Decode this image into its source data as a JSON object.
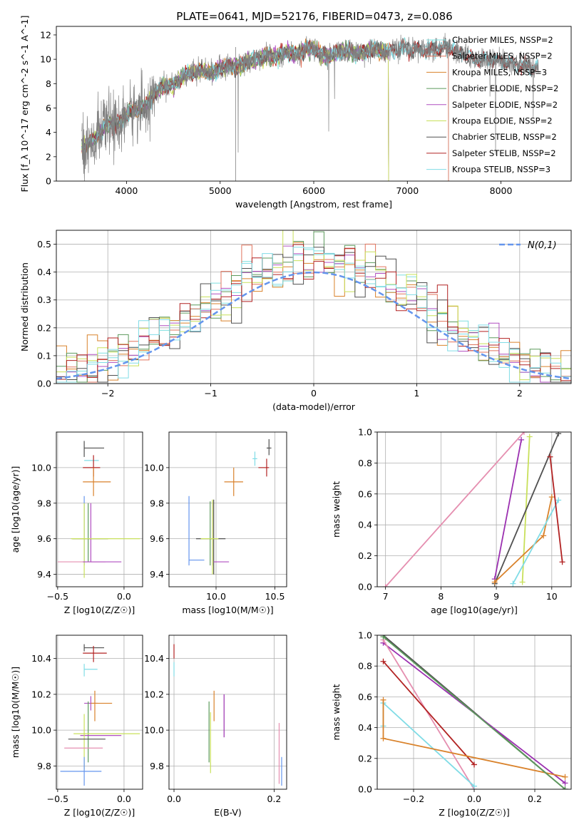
{
  "chart_data": [
    {
      "id": "spectrum",
      "type": "line",
      "title": "PLATE=0641, MJD=52176, FIBERID=0473, z=0.086",
      "xlabel": "wavelength [Angstrom, rest frame]",
      "ylabel": "Flux [f_λ 10^-17 erg cm^-2 s^-1 A^-1]",
      "xlim": [
        3250,
        8750
      ],
      "ylim": [
        0,
        12.7
      ],
      "xticks": [
        4000,
        5000,
        6000,
        7000,
        8000
      ],
      "yticks": [
        0,
        2,
        4,
        6,
        8,
        10,
        12
      ],
      "grid": false,
      "legend_position": "right",
      "data_series": {
        "name": "data",
        "x": [
          3520,
          3600,
          3700,
          3800,
          3900,
          4000,
          4100,
          4200,
          4300,
          4400,
          4500,
          4600,
          4700,
          4800,
          4900,
          5000,
          5100,
          5200,
          5300,
          5400,
          5500,
          5600,
          5700,
          5800,
          5900,
          6000,
          6100,
          6200,
          6300,
          6400,
          6500,
          6600,
          6700,
          6800,
          6900,
          7000,
          7100,
          7200,
          7300,
          7400,
          7500,
          7600,
          7700,
          7800,
          7900,
          8000,
          8100,
          8200,
          8300,
          8400
        ],
        "y": [
          2.8,
          3.2,
          3.8,
          4.8,
          4.6,
          5.5,
          5.9,
          6.1,
          7.2,
          7.8,
          7.8,
          8.6,
          9.0,
          9.0,
          8.9,
          9.2,
          9.5,
          9.4,
          9.8,
          10.0,
          10.3,
          10.2,
          10.6,
          10.4,
          10.8,
          10.9,
          10.3,
          10.4,
          10.7,
          10.6,
          10.5,
          10.8,
          10.7,
          10.6,
          10.9,
          10.9,
          10.8,
          10.7,
          10.8,
          10.9,
          10.8,
          10.4,
          10.0,
          10.0,
          9.9,
          9.9,
          9.8,
          9.5,
          9.3,
          9.2
        ]
      },
      "series": [
        {
          "name": "Chabrier MILES, N_SSP=2",
          "color": "#7fdfdf",
          "x_end": 7440
        },
        {
          "name": "Salpeter MILES, N_SSP=2",
          "color": "#e0735c",
          "x_end": 7440
        },
        {
          "name": "Kroupa MILES, N_SSP=3",
          "color": "#d9822b",
          "x_end": 6800
        },
        {
          "name": "Chabrier ELODIE, N_SSP=2",
          "color": "#5c9a5c",
          "x_end": 6800
        },
        {
          "name": "Salpeter ELODIE, N_SSP=2",
          "color": "#b04fc0",
          "x_end": 6800
        },
        {
          "name": "Kroupa ELODIE, N_SSP=2",
          "color": "#c8e05a",
          "x_end": 6800
        },
        {
          "name": "Chabrier STELIB, N_SSP=2",
          "color": "#505050",
          "x_end": 8400
        },
        {
          "name": "Salpeter STELIB, N_SSP=2",
          "color": "#b22222",
          "x_end": 8400
        },
        {
          "name": "Kroupa STELIB, N_SSP=3",
          "color": "#80dce6",
          "x_end": 8400
        }
      ]
    },
    {
      "id": "residual-hist",
      "type": "line",
      "xlabel": "(data-model)/error",
      "ylabel": "Normed distribution",
      "xlim": [
        -2.5,
        2.5
      ],
      "ylim": [
        0,
        0.55
      ],
      "xticks": [
        -2,
        -1,
        0,
        1,
        2
      ],
      "yticks": [
        0.0,
        0.1,
        0.2,
        0.3,
        0.4,
        0.5
      ],
      "grid": true,
      "legend_position": "top-right",
      "reference_curve": {
        "name": "N(0,1)",
        "color": "#6495ed",
        "mu": 0,
        "sigma": 1
      },
      "bin_width": 0.1,
      "series": [
        {
          "color": "#7fdfdf"
        },
        {
          "color": "#e0735c"
        },
        {
          "color": "#d9822b"
        },
        {
          "color": "#5c9a5c"
        },
        {
          "color": "#b04fc0"
        },
        {
          "color": "#c8e05a"
        },
        {
          "color": "#505050"
        },
        {
          "color": "#b22222"
        },
        {
          "color": "#80dce6"
        }
      ]
    },
    {
      "id": "age-vs-z",
      "type": "scatter",
      "xlabel": "Z [log10(Z/Z☉)]",
      "ylabel": "age [log10(age/yr)]",
      "xlim": [
        -0.51,
        0.14
      ],
      "ylim": [
        9.33,
        10.2
      ],
      "xticks": [
        -0.5,
        0.0
      ],
      "yticks": [
        9.4,
        9.6,
        9.8,
        10.0
      ],
      "grid": true,
      "points": [
        {
          "x": -0.3,
          "y": 10.11,
          "xerr": [
            0.0,
            0.15
          ],
          "yerr": [
            0.05,
            0.04
          ],
          "color": "#505050"
        },
        {
          "x": -0.3,
          "y": 10.04,
          "xerr": [
            0.0,
            0.11
          ],
          "yerr": [
            0.0,
            0.0
          ],
          "color": "#80dce6"
        },
        {
          "x": -0.23,
          "y": 10.0,
          "xerr": [
            0.08,
            0.05
          ],
          "yerr": [
            0.05,
            0.07
          ],
          "color": "#b22222"
        },
        {
          "x": -0.23,
          "y": 9.92,
          "xerr": [
            0.08,
            0.13
          ],
          "yerr": [
            0.08,
            0.08
          ],
          "color": "#d9822b"
        },
        {
          "x": -0.3,
          "y": 9.72,
          "xerr": [
            0.0,
            0.0
          ],
          "yerr": [
            0.27,
            0.12
          ],
          "color": "#6495ed"
        },
        {
          "x": -0.27,
          "y": 9.72,
          "xerr": [
            0.0,
            0.0
          ],
          "yerr": [
            0.25,
            0.08
          ],
          "color": "#5c9a5c"
        },
        {
          "x": -0.25,
          "y": 9.72,
          "xerr": [
            0.0,
            0.0
          ],
          "yerr": [
            0.25,
            0.08
          ],
          "color": "#b04fc0"
        },
        {
          "x": -0.27,
          "y": 9.6,
          "xerr": [
            0.12,
            0.15
          ],
          "yerr": [
            0.0,
            0.0
          ],
          "color": "#505050"
        },
        {
          "x": -0.3,
          "y": 9.6,
          "xerr": [
            0.1,
            0.42
          ],
          "yerr": [
            0.22,
            0.2
          ],
          "color": "#c8e05a"
        },
        {
          "x": -0.38,
          "y": 9.47,
          "xerr": [
            0.12,
            0.24
          ],
          "yerr": [
            0.0,
            0.0
          ],
          "color": "#e58fb0"
        },
        {
          "x": -0.26,
          "y": 9.47,
          "xerr": [
            0.05,
            0.24
          ],
          "yerr": [
            0.0,
            0.0
          ],
          "color": "#b04fc0"
        }
      ]
    },
    {
      "id": "age-vs-mass",
      "type": "scatter",
      "xlabel": "mass [log10(M/M☉)]",
      "ylabel": "",
      "xlim": [
        9.6,
        10.6
      ],
      "ylim": [
        9.33,
        10.2
      ],
      "xticks": [
        10.0,
        10.5
      ],
      "yticks": [
        9.4,
        9.6,
        9.8,
        10.0
      ],
      "grid": true,
      "points": [
        {
          "x": 10.45,
          "y": 10.11,
          "xerr": [
            0.02,
            0.02
          ],
          "yerr": [
            0.04,
            0.05
          ],
          "color": "#505050"
        },
        {
          "x": 10.33,
          "y": 10.05,
          "xerr": [
            0.02,
            0.02
          ],
          "yerr": [
            0.04,
            0.04
          ],
          "color": "#80dce6"
        },
        {
          "x": 10.43,
          "y": 10.0,
          "xerr": [
            0.07,
            0.02
          ],
          "yerr": [
            0.05,
            0.05
          ],
          "color": "#b22222"
        },
        {
          "x": 10.15,
          "y": 9.92,
          "xerr": [
            0.08,
            0.08
          ],
          "yerr": [
            0.08,
            0.08
          ],
          "color": "#d9822b"
        },
        {
          "x": 9.77,
          "y": 9.7,
          "xerr": [
            0.0,
            0.0
          ],
          "yerr": [
            0.25,
            0.14
          ],
          "color": "#6495ed"
        },
        {
          "x": 9.95,
          "y": 9.7,
          "xerr": [
            0.0,
            0.0
          ],
          "yerr": [
            0.25,
            0.11
          ],
          "color": "#5c9a5c"
        },
        {
          "x": 9.97,
          "y": 9.7,
          "xerr": [
            0.0,
            0.0
          ],
          "yerr": [
            0.25,
            0.11
          ],
          "color": "#b04fc0"
        },
        {
          "x": 9.98,
          "y": 9.6,
          "xerr": [
            0.15,
            0.1
          ],
          "yerr": [
            0.2,
            0.22
          ],
          "color": "#505050"
        },
        {
          "x": 9.97,
          "y": 9.6,
          "xerr": [
            0.1,
            0.05
          ],
          "yerr": [
            0.2,
            0.22
          ],
          "color": "#c8e05a"
        },
        {
          "x": 9.77,
          "y": 9.48,
          "xerr": [
            0.0,
            0.13
          ],
          "yerr": [
            0.0,
            0.0
          ],
          "color": "#6495ed"
        },
        {
          "x": 9.98,
          "y": 9.47,
          "xerr": [
            0.0,
            0.13
          ],
          "yerr": [
            0.0,
            0.0
          ],
          "color": "#b04fc0"
        }
      ]
    },
    {
      "id": "weight-vs-age",
      "type": "line",
      "xlabel": "age [log10(age/yr)]",
      "ylabel": "mass weight",
      "xlim": [
        6.85,
        10.35
      ],
      "ylim": [
        0,
        1.0
      ],
      "xticks": [
        7,
        8,
        9,
        10
      ],
      "yticks": [
        0.0,
        0.2,
        0.4,
        0.6,
        0.8,
        1.0
      ],
      "grid": true,
      "series": [
        {
          "color": "#e58fb0",
          "x": [
            7.0,
            9.5
          ],
          "y": [
            0.0,
            1.0
          ]
        },
        {
          "color": "#9b30b0",
          "x": [
            8.97,
            9.45
          ],
          "y": [
            0.05,
            0.95
          ]
        },
        {
          "color": "#c8e05a",
          "x": [
            9.47,
            9.6
          ],
          "y": [
            0.03,
            0.97
          ]
        },
        {
          "color": "#505050",
          "x": [
            8.97,
            10.12
          ],
          "y": [
            0.02,
            0.99
          ]
        },
        {
          "color": "#d9822b",
          "x": [
            8.97,
            9.85,
            10.0
          ],
          "y": [
            0.03,
            0.33,
            0.58
          ]
        },
        {
          "color": "#80dce6",
          "x": [
            9.3,
            10.12
          ],
          "y": [
            0.02,
            0.56
          ]
        },
        {
          "color": "#b22222",
          "x": [
            9.97,
            10.19
          ],
          "y": [
            0.84,
            0.16
          ]
        }
      ]
    },
    {
      "id": "mass-vs-z",
      "type": "scatter",
      "xlabel": "Z [log10(Z/Z☉)]",
      "ylabel": "mass [log10(M/M☉)]",
      "xlim": [
        -0.51,
        0.14
      ],
      "ylim": [
        9.67,
        10.53
      ],
      "xticks": [
        -0.5,
        0.0
      ],
      "yticks": [
        9.8,
        10.0,
        10.2,
        10.4
      ],
      "grid": true,
      "points": [
        {
          "x": -0.3,
          "y": 10.46,
          "xerr": [
            0.0,
            0.15
          ],
          "yerr": [
            0.02,
            0.02
          ],
          "color": "#505050"
        },
        {
          "x": -0.23,
          "y": 10.43,
          "xerr": [
            0.08,
            0.1
          ],
          "yerr": [
            0.05,
            0.04
          ],
          "color": "#b22222"
        },
        {
          "x": -0.3,
          "y": 10.34,
          "xerr": [
            0.0,
            0.1
          ],
          "yerr": [
            0.04,
            0.03
          ],
          "color": "#80dce6"
        },
        {
          "x": -0.25,
          "y": 10.15,
          "xerr": [
            0.05,
            0.05
          ],
          "yerr": [
            0.04,
            0.04
          ],
          "color": "#b04fc0"
        },
        {
          "x": -0.22,
          "y": 10.15,
          "xerr": [
            0.03,
            0.13
          ],
          "yerr": [
            0.1,
            0.07
          ],
          "color": "#d9822b"
        },
        {
          "x": -0.27,
          "y": 9.96,
          "xerr": [
            0.0,
            0.0
          ],
          "yerr": [
            0.14,
            0.2
          ],
          "color": "#5c9a5c"
        },
        {
          "x": -0.25,
          "y": 9.97,
          "xerr": [
            0.08,
            0.23
          ],
          "yerr": [
            0.0,
            0.0
          ],
          "color": "#b04fc0"
        },
        {
          "x": -0.3,
          "y": 9.98,
          "xerr": [
            0.08,
            0.42
          ],
          "yerr": [
            0.2,
            0.11
          ],
          "color": "#c8e05a"
        },
        {
          "x": -0.27,
          "y": 9.95,
          "xerr": [
            0.15,
            0.13
          ],
          "yerr": [
            0.0,
            0.0
          ],
          "color": "#505050"
        },
        {
          "x": -0.3,
          "y": 9.9,
          "xerr": [
            0.15,
            0.14
          ],
          "yerr": [
            0.0,
            0.0
          ],
          "color": "#e58fb0"
        },
        {
          "x": -0.3,
          "y": 9.77,
          "xerr": [
            0.18,
            0.13
          ],
          "yerr": [
            0.08,
            0.08
          ],
          "color": "#6495ed"
        }
      ]
    },
    {
      "id": "mass-vs-ebv",
      "type": "scatter",
      "xlabel": "E(B-V)",
      "ylabel": "",
      "xlim": [
        -0.01,
        0.225
      ],
      "ylim": [
        9.67,
        10.53
      ],
      "xticks": [
        0.0,
        0.2
      ],
      "yticks": [
        9.8,
        10.0,
        10.2,
        10.4
      ],
      "grid": true,
      "points": [
        {
          "x": 0.0,
          "y": 10.44,
          "xerr": [
            0.0,
            0.0
          ],
          "yerr": [
            0.04,
            0.04
          ],
          "color": "#b22222"
        },
        {
          "x": 0.0,
          "y": 10.34,
          "xerr": [
            0.0,
            0.0
          ],
          "yerr": [
            0.04,
            0.04
          ],
          "color": "#80dce6"
        },
        {
          "x": 0.08,
          "y": 10.15,
          "xerr": [
            0.0,
            0.0
          ],
          "yerr": [
            0.1,
            0.07
          ],
          "color": "#d9822b"
        },
        {
          "x": 0.1,
          "y": 10.12,
          "xerr": [
            0.0,
            0.0
          ],
          "yerr": [
            0.16,
            0.08
          ],
          "color": "#9b30b0"
        },
        {
          "x": 0.07,
          "y": 9.99,
          "xerr": [
            0.0,
            0.0
          ],
          "yerr": [
            0.17,
            0.17
          ],
          "color": "#5c9a5c"
        },
        {
          "x": 0.073,
          "y": 9.98,
          "xerr": [
            0.0,
            0.0
          ],
          "yerr": [
            0.22,
            0.12
          ],
          "color": "#c8e05a"
        },
        {
          "x": 0.21,
          "y": 9.88,
          "xerr": [
            0.0,
            0.0
          ],
          "yerr": [
            0.18,
            0.16
          ],
          "color": "#e58fb0"
        },
        {
          "x": 0.215,
          "y": 9.77,
          "xerr": [
            0.0,
            0.0
          ],
          "yerr": [
            0.08,
            0.08
          ],
          "color": "#6495ed"
        }
      ]
    },
    {
      "id": "weight-vs-z",
      "type": "line",
      "xlabel": "Z [log10(Z/Z☉)]",
      "ylabel": "mass weight",
      "xlim": [
        -0.32,
        0.32
      ],
      "ylim": [
        0,
        1.0
      ],
      "xticks": [
        -0.2,
        0.0,
        0.2
      ],
      "yticks": [
        0.0,
        0.2,
        0.4,
        0.6,
        0.8,
        1.0
      ],
      "grid": true,
      "series": [
        {
          "color": "#505050",
          "x": [
            -0.3,
            0.3
          ],
          "y": [
            1.0,
            0.0
          ]
        },
        {
          "color": "#9b30b0",
          "x": [
            -0.3,
            0.3
          ],
          "y": [
            0.95,
            0.04
          ]
        },
        {
          "color": "#e58fb0",
          "x": [
            -0.3,
            0.0
          ],
          "y": [
            0.97,
            0.0
          ]
        },
        {
          "color": "#b22222",
          "x": [
            -0.3,
            0.0
          ],
          "y": [
            0.83,
            0.16
          ]
        },
        {
          "color": "#80dce6",
          "x": [
            -0.3,
            -0.3,
            0.0
          ],
          "y": [
            0.41,
            0.56,
            0.02
          ]
        },
        {
          "color": "#d9822b",
          "x": [
            -0.3,
            -0.3,
            0.3
          ],
          "y": [
            0.58,
            0.33,
            0.08
          ]
        },
        {
          "color": "#5c9a5c",
          "x": [
            -0.3,
            0.3
          ],
          "y": [
            0.99,
            0.0
          ]
        }
      ]
    }
  ]
}
